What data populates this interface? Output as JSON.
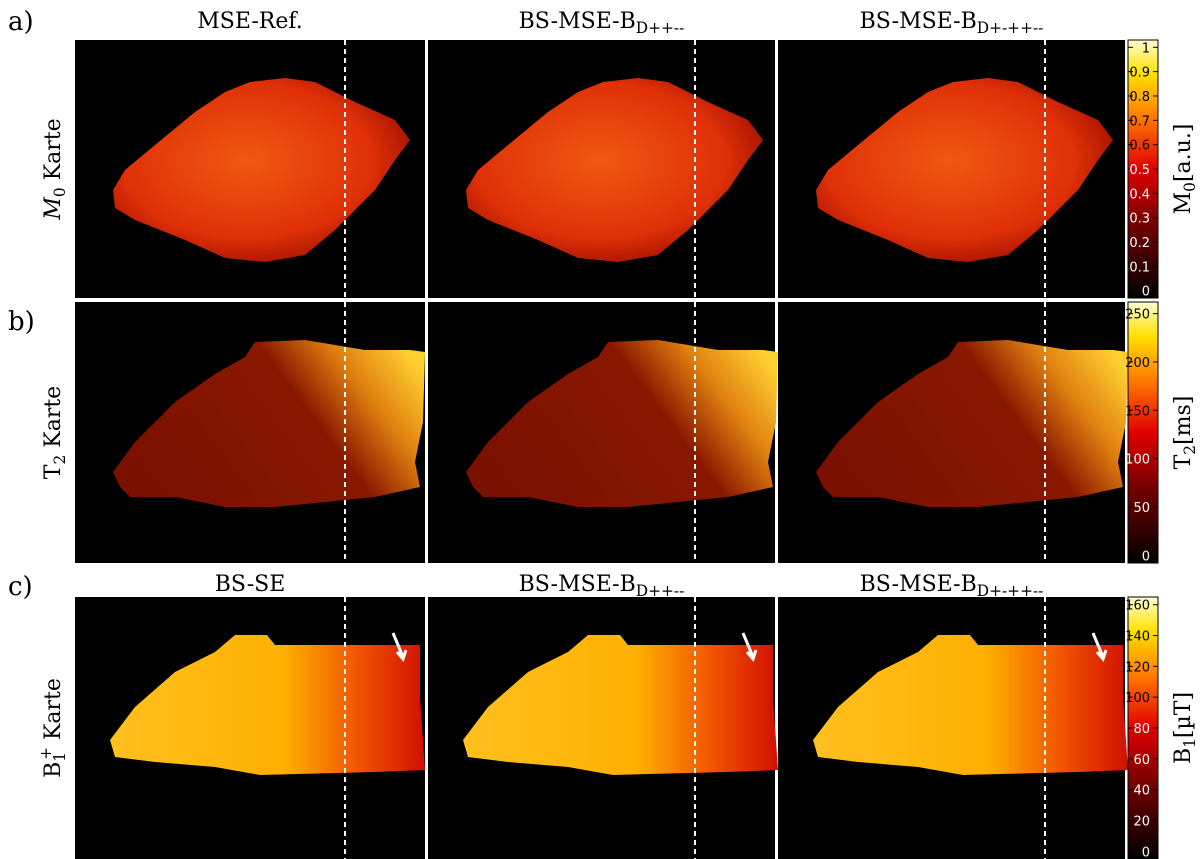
{
  "panels": [
    {
      "label": "a)",
      "row_label": {
        "main": "M",
        "sub": "0",
        "rest": " Karte"
      },
      "colorbar": {
        "range": [
          -0.03,
          1.03
        ],
        "ticks": [
          0,
          0.1,
          0.2,
          0.3,
          0.4,
          0.5,
          0.6,
          0.7,
          0.8,
          0.9,
          1
        ],
        "label": {
          "main": "M",
          "sub": "0",
          "rest": "[a.u.]"
        }
      }
    },
    {
      "label": "b)",
      "row_label": {
        "main": "T",
        "sub": "2",
        "rest": " Karte"
      },
      "colorbar": {
        "range": [
          -8,
          262
        ],
        "ticks": [
          0,
          50,
          100,
          150,
          200,
          250
        ],
        "label": {
          "main": "T",
          "sub": "2",
          "rest": "[ms]"
        }
      }
    },
    {
      "label": "c)",
      "row_label": {
        "main": "B",
        "sub": "1",
        "sup": "+",
        "rest": " Karte"
      },
      "colorbar": {
        "range": [
          -5,
          165
        ],
        "ticks": [
          0,
          20,
          40,
          60,
          80,
          100,
          120,
          140,
          160
        ],
        "label": {
          "main": "B",
          "sub": "1",
          "rest": "[µT]"
        }
      }
    }
  ],
  "column_titles_top": [
    {
      "main": "MSE-Ref."
    },
    {
      "main": "BS-MSE-B",
      "sub": "D++--"
    },
    {
      "main": "BS-MSE-B",
      "sub": "D+-++--"
    }
  ],
  "column_titles_bottom": [
    {
      "main": "BS-SE"
    },
    {
      "main": "BS-MSE-B",
      "sub": "D++--"
    },
    {
      "main": "BS-MSE-B",
      "sub": "D+-++--"
    }
  ]
}
